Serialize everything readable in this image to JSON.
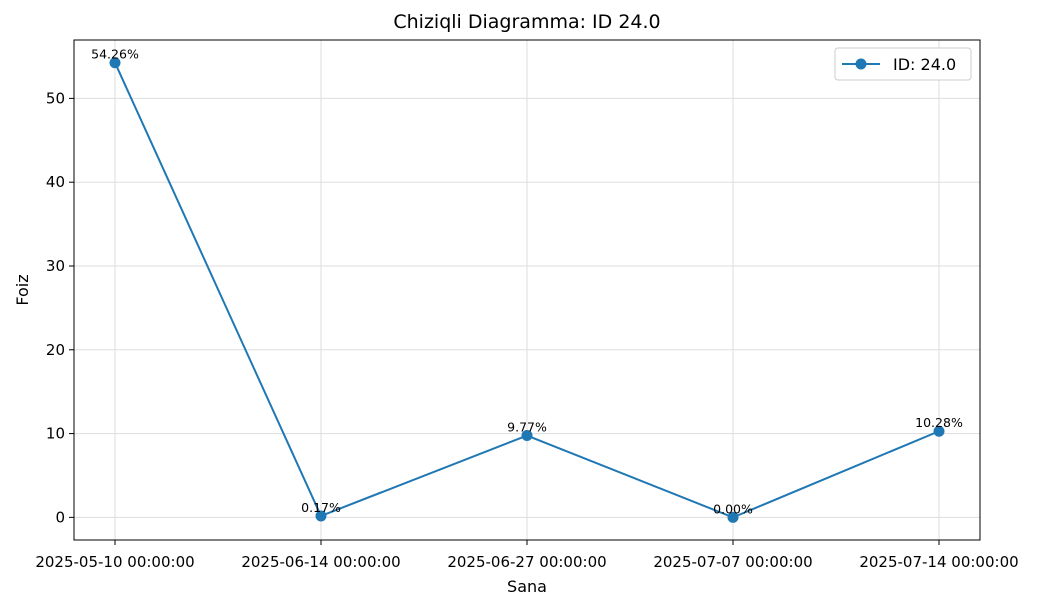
{
  "chart_data": {
    "type": "line",
    "title": "Chiziqli Diagramma: ID 24.0",
    "xlabel": "Sana",
    "ylabel": "Foiz",
    "categories": [
      "2025-05-10 00:00:00",
      "2025-06-14 00:00:00",
      "2025-06-27 00:00:00",
      "2025-07-07 00:00:00",
      "2025-07-14 00:00:00"
    ],
    "series": [
      {
        "name": "ID: 24.0",
        "values": [
          54.26,
          0.17,
          9.77,
          0.0,
          10.28
        ],
        "labels": [
          "54.26%",
          "0.17%",
          "9.77%",
          "0.00%",
          "10.28%"
        ],
        "color": "#1f77b4"
      }
    ],
    "ylim": [
      -2.7,
      56.97
    ],
    "yticks": [
      0,
      10,
      20,
      30,
      40,
      50
    ],
    "ytick_labels": [
      "0",
      "10",
      "20",
      "30",
      "40",
      "50"
    ],
    "grid": true,
    "legend_position": "top-right",
    "colors": {
      "line": "#1f77b4",
      "grid": "#dddddd",
      "axes": "#000000",
      "background": "#ffffff"
    }
  }
}
